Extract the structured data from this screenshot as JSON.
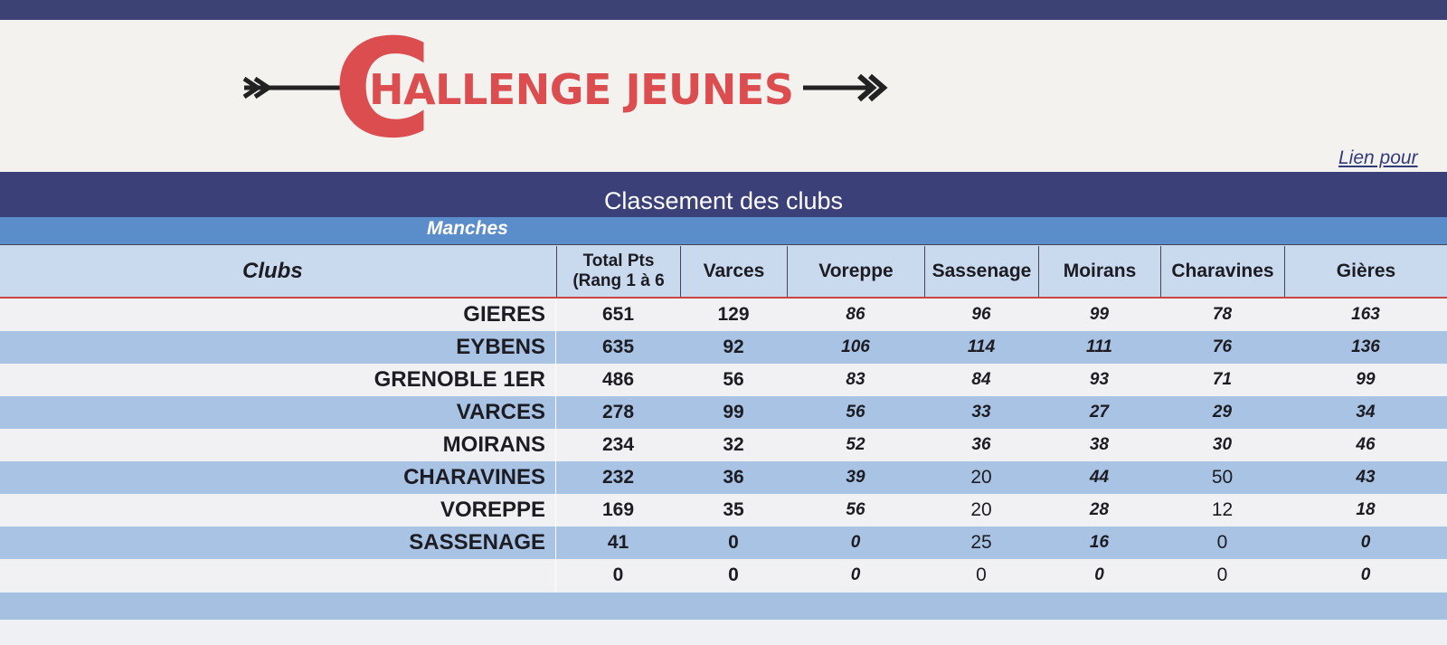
{
  "header": {
    "logo_initial": "C",
    "logo_rest": "HALLENGE JEUNES",
    "link": "Lien pour"
  },
  "table": {
    "title": "Classement des clubs",
    "group_label": "Manches",
    "columns": [
      "Clubs",
      "Total Pts (Rang 1 à 6",
      "Varces",
      "Voreppe",
      "Sassenage",
      "Moirans",
      "Charavines",
      "Gières"
    ],
    "rows": [
      [
        "GIERES",
        651,
        129,
        86,
        96,
        99,
        78,
        163
      ],
      [
        "EYBENS",
        635,
        92,
        106,
        114,
        111,
        76,
        136
      ],
      [
        "GRENOBLE 1ER",
        486,
        56,
        83,
        84,
        93,
        71,
        99
      ],
      [
        "VARCES",
        278,
        99,
        56,
        33,
        27,
        29,
        34
      ],
      [
        "MOIRANS",
        234,
        32,
        52,
        36,
        38,
        30,
        46
      ],
      [
        "CHARAVINES",
        232,
        36,
        39,
        20,
        44,
        50,
        43
      ],
      [
        "VOREPPE",
        169,
        35,
        56,
        20,
        28,
        12,
        18
      ],
      [
        "SASSENAGE",
        41,
        0,
        0,
        25,
        16,
        0,
        0
      ],
      [
        null,
        0,
        0,
        0,
        0,
        0,
        0,
        0
      ]
    ]
  }
}
